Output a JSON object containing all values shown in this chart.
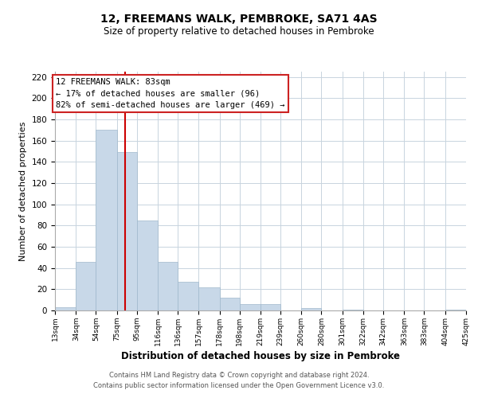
{
  "title": "12, FREEMANS WALK, PEMBROKE, SA71 4AS",
  "subtitle": "Size of property relative to detached houses in Pembroke",
  "xlabel": "Distribution of detached houses by size in Pembroke",
  "ylabel": "Number of detached properties",
  "bar_color": "#c8d8e8",
  "bar_edge_color": "#a0b8cc",
  "grid_color": "#c8d4de",
  "vline_x": 83,
  "vline_color": "#cc0000",
  "annotation_title": "12 FREEMANS WALK: 83sqm",
  "annotation_line1": "← 17% of detached houses are smaller (96)",
  "annotation_line2": "82% of semi-detached houses are larger (469) →",
  "bin_edges": [
    13,
    34,
    54,
    75,
    95,
    116,
    136,
    157,
    178,
    198,
    219,
    239,
    260,
    280,
    301,
    322,
    342,
    363,
    383,
    404,
    425
  ],
  "bar_heights": [
    3,
    46,
    170,
    149,
    85,
    46,
    27,
    22,
    12,
    6,
    6,
    0,
    2,
    0,
    1,
    0,
    0,
    0,
    0,
    1
  ],
  "ylim": [
    0,
    225
  ],
  "yticks": [
    0,
    20,
    40,
    60,
    80,
    100,
    120,
    140,
    160,
    180,
    200,
    220
  ],
  "footnote1": "Contains HM Land Registry data © Crown copyright and database right 2024.",
  "footnote2": "Contains public sector information licensed under the Open Government Licence v3.0."
}
